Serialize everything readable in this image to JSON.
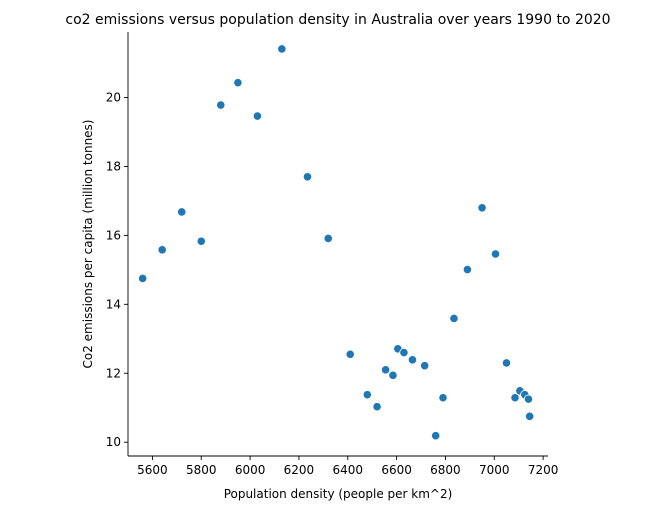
{
  "chart_data": {
    "type": "scatter",
    "title": "co2 emissions versus population density in Australia over years 1990 to 2020",
    "xlabel": "Population density (people per km^2)",
    "ylabel": "Co2 emissions per capita (million tonnes)",
    "xlim": [
      5500,
      7220
    ],
    "ylim": [
      9.6,
      21.9
    ],
    "xticks": [
      5600,
      5800,
      6000,
      6200,
      6400,
      6600,
      6800,
      7000,
      7200
    ],
    "yticks": [
      10,
      12,
      14,
      16,
      18,
      20
    ],
    "grid": false,
    "point_color": "#1f77b4",
    "points": [
      {
        "x": 5560,
        "y": 14.75
      },
      {
        "x": 5640,
        "y": 15.58
      },
      {
        "x": 5720,
        "y": 16.68
      },
      {
        "x": 5800,
        "y": 15.83
      },
      {
        "x": 5880,
        "y": 19.78
      },
      {
        "x": 5950,
        "y": 20.43
      },
      {
        "x": 6030,
        "y": 19.46
      },
      {
        "x": 6130,
        "y": 21.41
      },
      {
        "x": 6235,
        "y": 17.7
      },
      {
        "x": 6320,
        "y": 15.91
      },
      {
        "x": 6410,
        "y": 12.55
      },
      {
        "x": 6480,
        "y": 11.38
      },
      {
        "x": 6520,
        "y": 11.03
      },
      {
        "x": 6555,
        "y": 12.1
      },
      {
        "x": 6585,
        "y": 11.94
      },
      {
        "x": 6605,
        "y": 12.71
      },
      {
        "x": 6630,
        "y": 12.6
      },
      {
        "x": 6665,
        "y": 12.39
      },
      {
        "x": 6715,
        "y": 12.22
      },
      {
        "x": 6760,
        "y": 10.19
      },
      {
        "x": 6790,
        "y": 11.29
      },
      {
        "x": 6835,
        "y": 13.59
      },
      {
        "x": 6890,
        "y": 15.01
      },
      {
        "x": 6950,
        "y": 16.8
      },
      {
        "x": 7005,
        "y": 15.46
      },
      {
        "x": 7050,
        "y": 12.3
      },
      {
        "x": 7085,
        "y": 11.29
      },
      {
        "x": 7105,
        "y": 11.49
      },
      {
        "x": 7125,
        "y": 11.38
      },
      {
        "x": 7140,
        "y": 11.25
      },
      {
        "x": 7145,
        "y": 10.75
      }
    ]
  }
}
